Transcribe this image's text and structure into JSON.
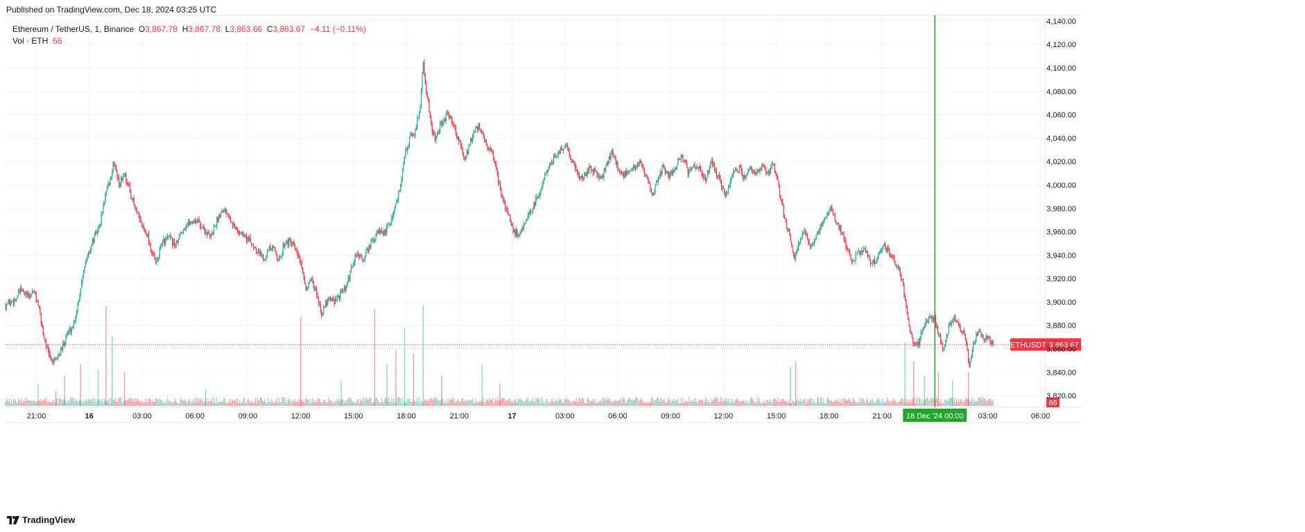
{
  "header": {
    "published": "Published on TradingView.com, Dec 18, 2024 03:25 UTC"
  },
  "legend": {
    "symbol": "Ethereum / TetherUS, 1, Binance",
    "o_label": "O",
    "o_value": "3,867.78",
    "h_label": "H",
    "h_value": "3,867.78",
    "l_label": "L",
    "l_value": "3,863.66",
    "c_label": "C",
    "c_value": "3,863.67",
    "change": "−4.11 (−0.11%)",
    "vol_label": "Vol · ETH",
    "vol_value": "66"
  },
  "footer": {
    "brand": "TradingView"
  },
  "colors": {
    "up": "#22ab94",
    "down": "#f23645",
    "crosshair": "#22a62a",
    "grid": "#f0f3fa"
  },
  "chart_data": {
    "type": "candlestick",
    "title": "Ethereum / TetherUS, 1, Binance",
    "y_axis": {
      "ylim": [
        3810,
        4145
      ],
      "ticks": [
        3820,
        3840,
        3860,
        3880,
        3900,
        3920,
        3940,
        3960,
        3980,
        4000,
        4020,
        4040,
        4060,
        4080,
        4100,
        4120,
        4140
      ],
      "tick_labels": [
        "3,820.00",
        "3,840.00",
        "3,860.00",
        "3,880.00",
        "3,900.00",
        "3,920.00",
        "3,940.00",
        "3,960.00",
        "3,980.00",
        "4,000.00",
        "4,020.00",
        "4,040.00",
        "4,060.00",
        "4,080.00",
        "4,100.00",
        "4,120.00",
        "4,140.00"
      ]
    },
    "x_axis": {
      "range_hours": [
        -4.75,
        54.25
      ],
      "ticks": [
        {
          "h": -3,
          "label": "21:00"
        },
        {
          "h": 0,
          "label": "16"
        },
        {
          "h": 3,
          "label": "03:00"
        },
        {
          "h": 6,
          "label": "06:00"
        },
        {
          "h": 9,
          "label": "09:00"
        },
        {
          "h": 12,
          "label": "12:00"
        },
        {
          "h": 15,
          "label": "15:00"
        },
        {
          "h": 18,
          "label": "18:00"
        },
        {
          "h": 21,
          "label": "21:00"
        },
        {
          "h": 24,
          "label": "17"
        },
        {
          "h": 27,
          "label": "03:00"
        },
        {
          "h": 30,
          "label": "06:00"
        },
        {
          "h": 33,
          "label": "09:00"
        },
        {
          "h": 36,
          "label": "12:00"
        },
        {
          "h": 39,
          "label": "15:00"
        },
        {
          "h": 42,
          "label": "18:00"
        },
        {
          "h": 45,
          "label": "21:00"
        },
        {
          "h": 51,
          "label": "03:00"
        },
        {
          "h": 54,
          "label": "06:00"
        }
      ]
    },
    "price_path": [
      [
        -4.75,
        3898
      ],
      [
        -4.2,
        3902
      ],
      [
        -3.9,
        3910
      ],
      [
        -3.4,
        3904
      ],
      [
        -3.2,
        3910
      ],
      [
        -2.9,
        3898
      ],
      [
        -2.6,
        3872
      ],
      [
        -2.3,
        3855
      ],
      [
        -2.0,
        3848
      ],
      [
        -1.6,
        3858
      ],
      [
        -1.3,
        3872
      ],
      [
        -0.9,
        3880
      ],
      [
        -0.6,
        3902
      ],
      [
        -0.3,
        3930
      ],
      [
        0.2,
        3952
      ],
      [
        0.6,
        3966
      ],
      [
        0.9,
        3990
      ],
      [
        1.2,
        4005
      ],
      [
        1.4,
        4020
      ],
      [
        1.7,
        4000
      ],
      [
        2.0,
        4010
      ],
      [
        2.3,
        3995
      ],
      [
        2.6,
        3980
      ],
      [
        2.9,
        3968
      ],
      [
        3.3,
        3958
      ],
      [
        3.5,
        3945
      ],
      [
        3.8,
        3932
      ],
      [
        4.1,
        3950
      ],
      [
        4.5,
        3955
      ],
      [
        4.9,
        3948
      ],
      [
        5.3,
        3962
      ],
      [
        5.7,
        3968
      ],
      [
        6.1,
        3970
      ],
      [
        6.5,
        3962
      ],
      [
        6.9,
        3955
      ],
      [
        7.3,
        3972
      ],
      [
        7.6,
        3980
      ],
      [
        7.9,
        3976
      ],
      [
        8.3,
        3962
      ],
      [
        8.7,
        3958
      ],
      [
        9.1,
        3952
      ],
      [
        9.5,
        3945
      ],
      [
        9.9,
        3938
      ],
      [
        10.2,
        3945
      ],
      [
        10.5,
        3945
      ],
      [
        10.8,
        3935
      ],
      [
        11.1,
        3952
      ],
      [
        11.5,
        3950
      ],
      [
        11.9,
        3938
      ],
      [
        12.1,
        3925
      ],
      [
        12.3,
        3912
      ],
      [
        12.6,
        3918
      ],
      [
        12.9,
        3908
      ],
      [
        13.2,
        3890
      ],
      [
        13.6,
        3905
      ],
      [
        14.0,
        3900
      ],
      [
        14.3,
        3908
      ],
      [
        14.6,
        3912
      ],
      [
        14.9,
        3930
      ],
      [
        15.2,
        3942
      ],
      [
        15.5,
        3935
      ],
      [
        15.8,
        3945
      ],
      [
        16.1,
        3952
      ],
      [
        16.4,
        3960
      ],
      [
        16.7,
        3958
      ],
      [
        17.0,
        3965
      ],
      [
        17.3,
        3978
      ],
      [
        17.6,
        3995
      ],
      [
        17.9,
        4025
      ],
      [
        18.2,
        4040
      ],
      [
        18.5,
        4045
      ],
      [
        18.8,
        4070
      ],
      [
        18.95,
        4105
      ],
      [
        19.1,
        4085
      ],
      [
        19.4,
        4050
      ],
      [
        19.7,
        4038
      ],
      [
        19.9,
        4050
      ],
      [
        20.3,
        4060
      ],
      [
        20.6,
        4055
      ],
      [
        20.8,
        4045
      ],
      [
        21.0,
        4038
      ],
      [
        21.3,
        4020
      ],
      [
        21.7,
        4040
      ],
      [
        22.1,
        4050
      ],
      [
        22.5,
        4035
      ],
      [
        22.9,
        4025
      ],
      [
        23.2,
        4005
      ],
      [
        23.5,
        3985
      ],
      [
        23.8,
        3975
      ],
      [
        24.1,
        3960
      ],
      [
        24.4,
        3958
      ],
      [
        24.7,
        3965
      ],
      [
        25.0,
        3975
      ],
      [
        25.3,
        3985
      ],
      [
        25.6,
        3995
      ],
      [
        25.9,
        4010
      ],
      [
        26.2,
        4020
      ],
      [
        26.5,
        4025
      ],
      [
        26.8,
        4030
      ],
      [
        27.1,
        4035
      ],
      [
        27.4,
        4020
      ],
      [
        27.7,
        4010
      ],
      [
        28.0,
        4005
      ],
      [
        28.4,
        4015
      ],
      [
        28.8,
        4010
      ],
      [
        29.1,
        4005
      ],
      [
        29.4,
        4020
      ],
      [
        29.7,
        4028
      ],
      [
        30.0,
        4015
      ],
      [
        30.3,
        4008
      ],
      [
        30.6,
        4012
      ],
      [
        30.9,
        4015
      ],
      [
        31.2,
        4020
      ],
      [
        31.5,
        4010
      ],
      [
        31.8,
        3998
      ],
      [
        32.0,
        3990
      ],
      [
        32.3,
        4008
      ],
      [
        32.6,
        4015
      ],
      [
        32.9,
        4008
      ],
      [
        33.2,
        4012
      ],
      [
        33.5,
        4025
      ],
      [
        33.8,
        4020
      ],
      [
        34.0,
        4010
      ],
      [
        34.3,
        4015
      ],
      [
        34.7,
        4012
      ],
      [
        35.0,
        4005
      ],
      [
        35.3,
        4020
      ],
      [
        35.6,
        4010
      ],
      [
        35.9,
        3998
      ],
      [
        36.2,
        3990
      ],
      [
        36.5,
        4010
      ],
      [
        36.9,
        4015
      ],
      [
        37.2,
        4005
      ],
      [
        37.5,
        4015
      ],
      [
        37.8,
        4008
      ],
      [
        38.2,
        4015
      ],
      [
        38.5,
        4010
      ],
      [
        38.8,
        4020
      ],
      [
        39.1,
        4000
      ],
      [
        39.3,
        3985
      ],
      [
        39.5,
        3968
      ],
      [
        39.8,
        3955
      ],
      [
        40.0,
        3935
      ],
      [
        40.3,
        3952
      ],
      [
        40.6,
        3960
      ],
      [
        40.9,
        3948
      ],
      [
        41.2,
        3952
      ],
      [
        41.5,
        3965
      ],
      [
        41.8,
        3975
      ],
      [
        42.1,
        3978
      ],
      [
        42.4,
        3970
      ],
      [
        42.7,
        3960
      ],
      [
        43.0,
        3945
      ],
      [
        43.3,
        3935
      ],
      [
        43.7,
        3942
      ],
      [
        44.0,
        3945
      ],
      [
        44.4,
        3932
      ],
      [
        44.8,
        3940
      ],
      [
        45.1,
        3948
      ],
      [
        45.4,
        3942
      ],
      [
        45.7,
        3935
      ],
      [
        46.0,
        3928
      ],
      [
        46.3,
        3905
      ],
      [
        46.5,
        3880
      ],
      [
        46.8,
        3862
      ],
      [
        47.1,
        3866
      ],
      [
        47.4,
        3880
      ],
      [
        47.7,
        3888
      ],
      [
        48.0,
        3885
      ],
      [
        48.2,
        3872
      ],
      [
        48.5,
        3860
      ],
      [
        48.8,
        3880
      ],
      [
        49.1,
        3888
      ],
      [
        49.4,
        3878
      ],
      [
        49.7,
        3872
      ],
      [
        49.95,
        3848
      ],
      [
        50.2,
        3865
      ],
      [
        50.5,
        3875
      ],
      [
        50.8,
        3868
      ],
      [
        51.0,
        3870
      ],
      [
        51.3,
        3864
      ]
    ],
    "last_price": 3863.67,
    "last_price_label": "3,863.67",
    "ticker_label": "ETHUSDT",
    "last_volume_label": "66",
    "crosshair_h": 48.0,
    "crosshair_label": "18 Dec '24   00:00",
    "volume_spikes": [
      {
        "h": -2.9,
        "v": 80
      },
      {
        "h": -1.9,
        "v": 55
      },
      {
        "h": -1.4,
        "v": 110
      },
      {
        "h": -0.5,
        "v": 150
      },
      {
        "h": 0.5,
        "v": 130
      },
      {
        "h": 0.95,
        "v": 360
      },
      {
        "h": 1.3,
        "v": 250
      },
      {
        "h": 2.0,
        "v": 120
      },
      {
        "h": 6.6,
        "v": 60
      },
      {
        "h": 12.0,
        "v": 320
      },
      {
        "h": 14.3,
        "v": 90
      },
      {
        "h": 16.2,
        "v": 350
      },
      {
        "h": 16.9,
        "v": 150
      },
      {
        "h": 17.4,
        "v": 200
      },
      {
        "h": 17.9,
        "v": 280
      },
      {
        "h": 18.4,
        "v": 190
      },
      {
        "h": 18.95,
        "v": 360
      },
      {
        "h": 20.0,
        "v": 110
      },
      {
        "h": 22.3,
        "v": 150
      },
      {
        "h": 23.3,
        "v": 80
      },
      {
        "h": 39.8,
        "v": 140
      },
      {
        "h": 40.1,
        "v": 160
      },
      {
        "h": 46.3,
        "v": 230
      },
      {
        "h": 46.8,
        "v": 160
      },
      {
        "h": 47.4,
        "v": 110
      },
      {
        "h": 48.2,
        "v": 120
      },
      {
        "h": 49.0,
        "v": 90
      },
      {
        "h": 49.9,
        "v": 120
      }
    ]
  }
}
